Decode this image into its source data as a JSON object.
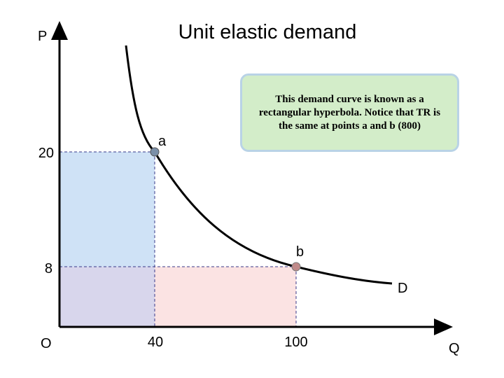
{
  "title": "Unit elastic demand",
  "axes": {
    "y_label": "P",
    "x_label": "Q",
    "origin": "O"
  },
  "ticks": {
    "p": [
      "20",
      "8"
    ],
    "q": [
      "40",
      "100"
    ]
  },
  "points": {
    "a": "a",
    "b": "b"
  },
  "curve_label": "D",
  "callout": "This demand curve is known as a rectangular hyperbola. Notice that TR is the same at points a and b (800)"
}
